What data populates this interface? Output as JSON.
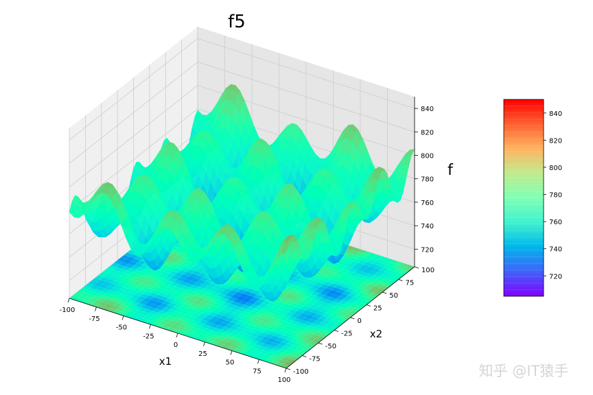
{
  "chart_data": {
    "type": "surface3d",
    "title": "f5",
    "xlabel": "x1",
    "ylabel": "x2",
    "zlabel": "f",
    "xlim": [
      -100,
      100
    ],
    "ylim": [
      -100,
      100
    ],
    "zlim": [
      705,
      850
    ],
    "xticks": [
      -100,
      -75,
      -50,
      -25,
      0,
      25,
      50,
      75,
      100
    ],
    "yticks": [
      -100,
      -75,
      -50,
      -25,
      0,
      25,
      50,
      75,
      100
    ],
    "zticks": [
      720,
      740,
      760,
      780,
      800,
      820,
      840
    ],
    "colormap": "rainbow",
    "colorbar_ticks": [
      720,
      740,
      760,
      780,
      800,
      820,
      840
    ],
    "colorbar_range": [
      705,
      850
    ],
    "grid": true,
    "contour_projection": "floor"
  },
  "watermark": "知乎 @IT猿手"
}
